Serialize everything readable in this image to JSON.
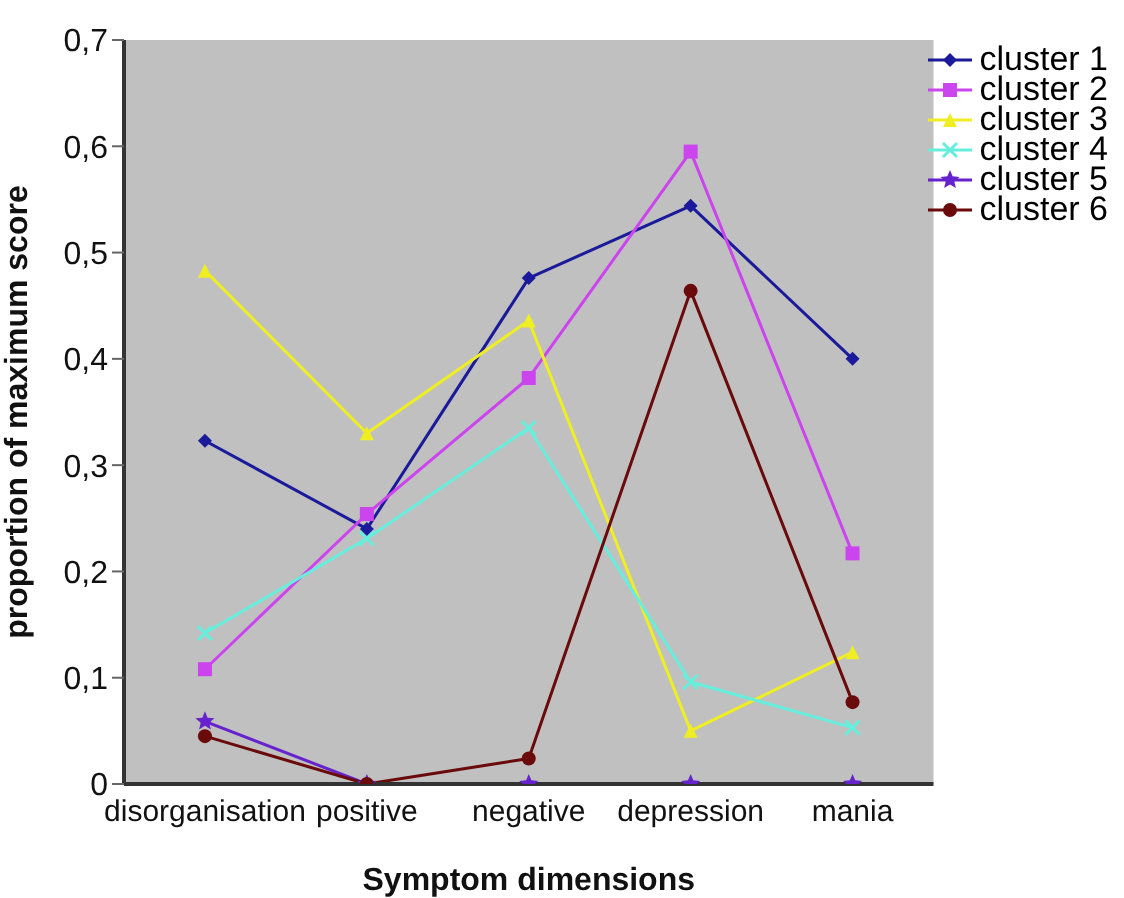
{
  "chart_data": {
    "type": "line",
    "xlabel": "Symptom dimensions",
    "ylabel": "proportion of maximum score",
    "categories": [
      "disorganisation",
      "positive",
      "negative",
      "depression",
      "mania"
    ],
    "series": [
      {
        "name": "cluster 1",
        "color": "#1a1a9a",
        "marker": "diamond",
        "values": [
          0.323,
          0.24,
          0.476,
          0.544,
          0.4
        ]
      },
      {
        "name": "cluster 2",
        "color": "#cc44ee",
        "marker": "square",
        "values": [
          0.108,
          0.254,
          0.382,
          0.595,
          0.217
        ]
      },
      {
        "name": "cluster 3",
        "color": "#eeee22",
        "marker": "triangle",
        "values": [
          0.483,
          0.33,
          0.436,
          0.05,
          0.124
        ]
      },
      {
        "name": "cluster 4",
        "color": "#66eedd",
        "marker": "cross",
        "values": [
          0.142,
          0.231,
          0.335,
          0.096,
          0.053
        ]
      },
      {
        "name": "cluster 5",
        "color": "#6622cc",
        "marker": "star",
        "values": [
          0.059,
          0,
          0,
          0,
          0
        ]
      },
      {
        "name": "cluster 6",
        "color": "#6a0a0a",
        "marker": "circle",
        "values": [
          0.045,
          0,
          0.024,
          0.464,
          0.077
        ]
      }
    ],
    "ylim": [
      0,
      0.7
    ],
    "yticks": [
      0,
      {
        "value": 0.1,
        "label": "0,1"
      },
      {
        "value": 0.2,
        "label": "0,2"
      },
      {
        "value": 0.3,
        "label": "0,3"
      },
      {
        "value": 0.4,
        "label": "0,4"
      },
      {
        "value": 0.5,
        "label": "0,5"
      },
      {
        "value": 0.6,
        "label": "0,6"
      },
      {
        "value": 0.7,
        "label": "0,7"
      }
    ],
    "grid": false,
    "legend": "top right",
    "line_style": "solid"
  }
}
